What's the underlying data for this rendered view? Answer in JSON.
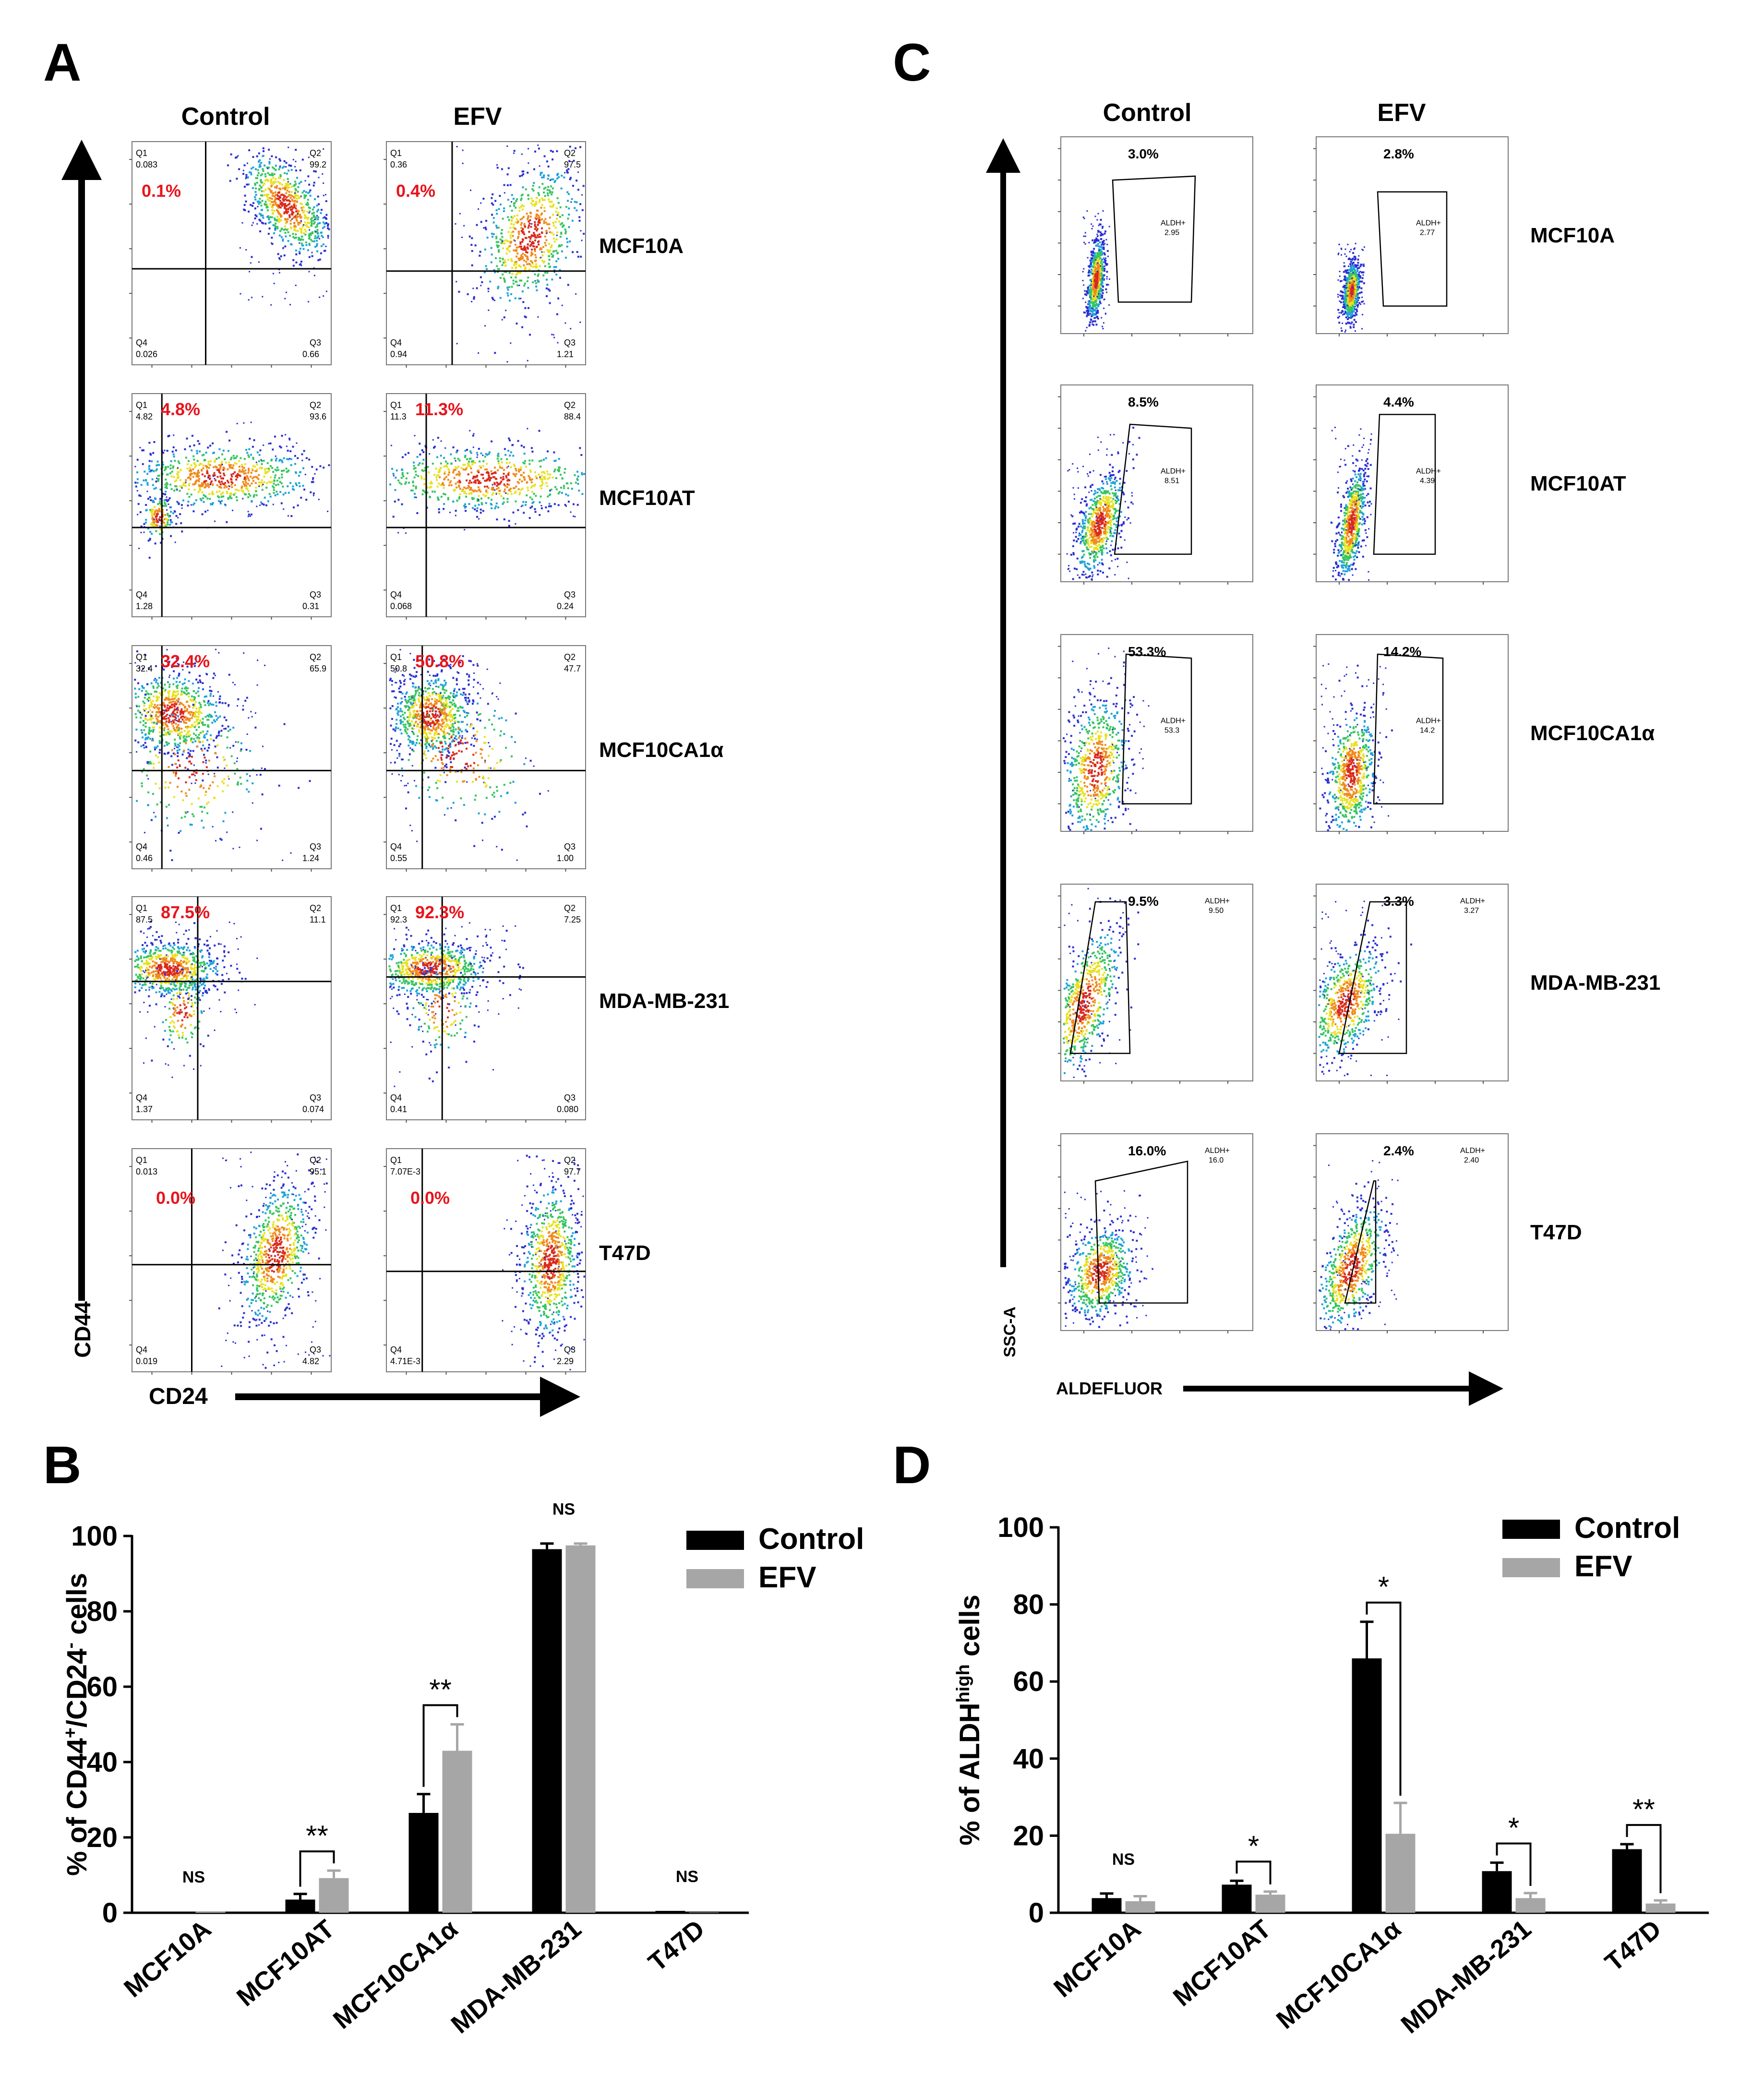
{
  "panels": {
    "A": "A",
    "B": "B",
    "C": "C",
    "D": "D"
  },
  "panel_a": {
    "col_headers": [
      "Control",
      "EFV"
    ],
    "y_axis_label": "CD44",
    "x_axis_label": "CD24",
    "rows": [
      {
        "cell_line": "MCF10A",
        "plots": [
          {
            "q1": "0.083",
            "q2": "99.2",
            "q3": "0.66",
            "q4": "0.026",
            "highlight": "0.1%"
          },
          {
            "q1": "0.36",
            "q2": "97.5",
            "q3": "1.21",
            "q4": "0.94",
            "highlight": "0.4%"
          }
        ]
      },
      {
        "cell_line": "MCF10AT",
        "plots": [
          {
            "q1": "4.82",
            "q2": "93.6",
            "q3": "0.31",
            "q4": "1.28",
            "highlight": "4.8%"
          },
          {
            "q1": "11.3",
            "q2": "88.4",
            "q3": "0.24",
            "q4": "0.068",
            "highlight": "11.3%"
          }
        ]
      },
      {
        "cell_line": "MCF10CA1α",
        "plots": [
          {
            "q1": "32.4",
            "q2": "65.9",
            "q3": "1.24",
            "q4": "0.46",
            "highlight": "32.4%"
          },
          {
            "q1": "50.8",
            "q2": "47.7",
            "q3": "1.00",
            "q4": "0.55",
            "highlight": "50.8%"
          }
        ]
      },
      {
        "cell_line": "MDA-MB-231",
        "plots": [
          {
            "q1": "87.5",
            "q2": "11.1",
            "q3": "0.074",
            "q4": "1.37",
            "highlight": "87.5%"
          },
          {
            "q1": "92.3",
            "q2": "7.25",
            "q3": "0.080",
            "q4": "0.41",
            "highlight": "92.3%"
          }
        ]
      },
      {
        "cell_line": "T47D",
        "plots": [
          {
            "q1": "0.013",
            "q2": "95.1",
            "q3": "4.82",
            "q4": "0.019",
            "highlight": "0.0%"
          },
          {
            "q1": "7.07E-3",
            "q2": "97.7",
            "q3": "2.29",
            "q4": "4.71E-3",
            "highlight": "0.0%"
          }
        ]
      }
    ]
  },
  "panel_c": {
    "col_headers": [
      "Control",
      "EFV"
    ],
    "y_axis_label": "SSC-A",
    "x_axis_label": "ALDEFLUOR",
    "gate_name": "ALDH+",
    "rows": [
      {
        "cell_line": "MCF10A",
        "plots": [
          {
            "pct": "3.0%",
            "gate_value": "2.95"
          },
          {
            "pct": "2.8%",
            "gate_value": "2.77"
          }
        ]
      },
      {
        "cell_line": "MCF10AT",
        "plots": [
          {
            "pct": "8.5%",
            "gate_value": "8.51"
          },
          {
            "pct": "4.4%",
            "gate_value": "4.39"
          }
        ]
      },
      {
        "cell_line": "MCF10CA1α",
        "plots": [
          {
            "pct": "53.3%",
            "gate_value": "53.3"
          },
          {
            "pct": "14.2%",
            "gate_value": "14.2"
          }
        ]
      },
      {
        "cell_line": "MDA-MB-231",
        "plots": [
          {
            "pct": "9.5%",
            "gate_value": "9.50"
          },
          {
            "pct": "3.3%",
            "gate_value": "3.27"
          }
        ]
      },
      {
        "cell_line": "T47D",
        "plots": [
          {
            "pct": "16.0%",
            "gate_value": "16.0"
          },
          {
            "pct": "2.4%",
            "gate_value": "2.40"
          }
        ]
      }
    ]
  },
  "colors": {
    "control": "#000000",
    "efv": "#a6a6a6",
    "highlight": "#e8141c"
  },
  "chart_data": [
    {
      "panel": "B",
      "type": "bar",
      "ylabel_parts": [
        "% of CD44",
        "+",
        "/CD24",
        "-",
        " cells"
      ],
      "ylim": [
        0,
        100
      ],
      "yticks": [
        0,
        20,
        40,
        60,
        80,
        100
      ],
      "categories": [
        "MCF10A",
        "MCF10AT",
        "MCF10CA1α",
        "MDA-MB-231",
        "T47D"
      ],
      "series": [
        {
          "name": "Control",
          "values": [
            0.1,
            3.5,
            26.5,
            96.5,
            0.5
          ],
          "errors": [
            0,
            1.5,
            5,
            1.5,
            0
          ]
        },
        {
          "name": "EFV",
          "values": [
            0.4,
            9.2,
            43,
            97.5,
            0.1
          ],
          "errors": [
            0,
            2,
            7,
            0.5,
            0
          ]
        }
      ],
      "significance": [
        "NS",
        "**",
        "**",
        "NS",
        "NS"
      ],
      "legend": "top-right"
    },
    {
      "panel": "D",
      "type": "bar",
      "ylabel_parts": [
        "% of ALDH",
        "high",
        " cells"
      ],
      "ylim": [
        0,
        100
      ],
      "yticks": [
        0,
        20,
        40,
        60,
        80,
        100
      ],
      "categories": [
        "MCF10A",
        "MCF10AT",
        "MCF10CA1α",
        "MDA-MB-231",
        "T47D"
      ],
      "series": [
        {
          "name": "Control",
          "values": [
            3.8,
            7.3,
            66,
            10.8,
            16.5
          ],
          "errors": [
            1.2,
            1,
            9.5,
            2.2,
            1.3
          ]
        },
        {
          "name": "EFV",
          "values": [
            3,
            4.7,
            20.5,
            3.8,
            2.4
          ],
          "errors": [
            1.3,
            0.8,
            8,
            1.3,
            0.8
          ]
        }
      ],
      "significance": [
        "NS",
        "*",
        "*",
        "*",
        "**"
      ],
      "legend": "top-right"
    }
  ]
}
